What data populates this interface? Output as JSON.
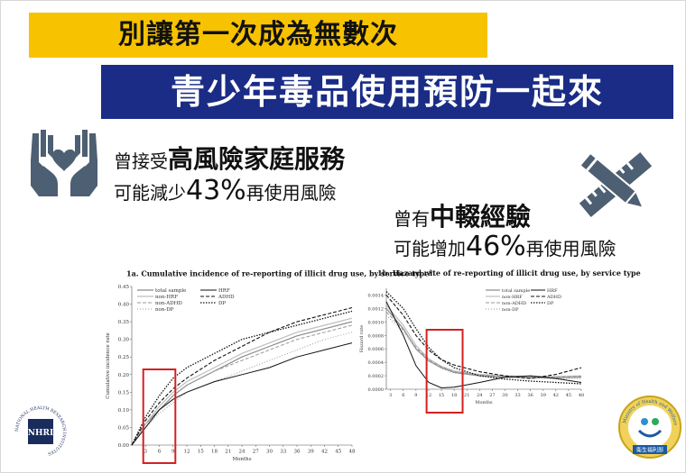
{
  "titles": {
    "line1": "別讓第一次成為無數次",
    "line2": "青少年毒品使用預防一起來"
  },
  "finding1": {
    "prefix": "曾接受",
    "highlight": "高風險家庭服務",
    "line2_prefix": "可能減少",
    "percent": "43%",
    "line2_suffix": "再使用風險"
  },
  "finding2": {
    "prefix": "曾有",
    "highlight": "中輟經驗",
    "line2_prefix": "可能增加",
    "percent": "46%",
    "line2_suffix": "再使用風險"
  },
  "icons": {
    "left": "hands-holding-heart-icon",
    "right": "pencil-ruler-icon"
  },
  "chart_data": [
    {
      "type": "line",
      "title": "1a. Cumulative incidence of re-reporting of illicit drug use, by service type",
      "title_mark": "a",
      "xlabel": "Months",
      "ylabel": "Cumulative incidence rate",
      "x_ticks": [
        3,
        6,
        9,
        12,
        15,
        18,
        21,
        24,
        27,
        30,
        33,
        36,
        39,
        42,
        45,
        48
      ],
      "y_ticks": [
        "0.00",
        "0.05",
        "0.10",
        "0.15",
        "0.20",
        "0.25",
        "0.30",
        "0.35",
        "0.40",
        "0.45"
      ],
      "xlim": [
        0,
        48
      ],
      "ylim": [
        0,
        0.45
      ],
      "highlight_box_x": [
        2.5,
        9.5
      ],
      "legend_placement": "top-left",
      "series": [
        {
          "name": "total sample",
          "style": "solid-gray",
          "x": [
            0,
            3,
            6,
            9,
            12,
            18,
            24,
            30,
            36,
            42,
            48
          ],
          "y": [
            0,
            0.06,
            0.1,
            0.14,
            0.17,
            0.21,
            0.25,
            0.28,
            0.31,
            0.33,
            0.35
          ]
        },
        {
          "name": "non-HRF",
          "style": "solid-lightgray",
          "x": [
            0,
            3,
            6,
            9,
            12,
            18,
            24,
            30,
            36,
            42,
            48
          ],
          "y": [
            0,
            0.06,
            0.11,
            0.15,
            0.18,
            0.22,
            0.26,
            0.29,
            0.32,
            0.34,
            0.36
          ]
        },
        {
          "name": "non-ADHD",
          "style": "dash-gray",
          "x": [
            0,
            3,
            6,
            9,
            12,
            18,
            24,
            30,
            36,
            42,
            48
          ],
          "y": [
            0,
            0.06,
            0.1,
            0.14,
            0.17,
            0.21,
            0.24,
            0.27,
            0.3,
            0.32,
            0.34
          ]
        },
        {
          "name": "non-DP",
          "style": "dot-gray",
          "x": [
            0,
            3,
            6,
            9,
            12,
            18,
            24,
            30,
            36,
            42,
            48
          ],
          "y": [
            0,
            0.05,
            0.09,
            0.12,
            0.15,
            0.18,
            0.21,
            0.24,
            0.27,
            0.3,
            0.32
          ]
        },
        {
          "name": "HRF",
          "style": "solid-black",
          "x": [
            0,
            3,
            6,
            9,
            12,
            18,
            24,
            30,
            36,
            42,
            48
          ],
          "y": [
            0,
            0.05,
            0.1,
            0.13,
            0.15,
            0.18,
            0.2,
            0.22,
            0.25,
            0.27,
            0.29
          ]
        },
        {
          "name": "ADHD",
          "style": "dash-black",
          "x": [
            0,
            3,
            6,
            9,
            12,
            18,
            24,
            30,
            36,
            42,
            48
          ],
          "y": [
            0,
            0.07,
            0.12,
            0.16,
            0.19,
            0.24,
            0.28,
            0.32,
            0.35,
            0.37,
            0.39
          ]
        },
        {
          "name": "DP",
          "style": "dot-black",
          "x": [
            0,
            3,
            6,
            9,
            12,
            18,
            24,
            30,
            36,
            42,
            48
          ],
          "y": [
            0,
            0.08,
            0.14,
            0.19,
            0.22,
            0.26,
            0.3,
            0.32,
            0.34,
            0.36,
            0.38
          ]
        }
      ]
    },
    {
      "type": "line",
      "title": "1b. Hazard rate of re-reporting of illicit drug use, by service type",
      "xlabel": "Months",
      "ylabel": "Hazard rate",
      "x_ticks": [
        3,
        6,
        9,
        12,
        15,
        18,
        21,
        24,
        27,
        30,
        33,
        36,
        39,
        42,
        45,
        48
      ],
      "y_ticks": [
        "0.0000",
        "0.0002",
        "0.0004",
        "0.0006",
        "0.0008",
        "0.0010",
        "0.0012",
        "0.0014"
      ],
      "xlim": [
        2,
        48
      ],
      "ylim": [
        0,
        0.0015
      ],
      "highlight_box_x": [
        11.5,
        20
      ],
      "legend_placement": "top-right",
      "series": [
        {
          "name": "total sample",
          "style": "solid-gray",
          "x": [
            2,
            6,
            9,
            12,
            15,
            18,
            24,
            30,
            36,
            42,
            48
          ],
          "y": [
            0.0012,
            0.0009,
            0.0006,
            0.00042,
            0.00032,
            0.00025,
            0.0002,
            0.00018,
            0.00017,
            0.00017,
            0.00018
          ]
        },
        {
          "name": "non-HRF",
          "style": "solid-lightgray",
          "x": [
            2,
            6,
            9,
            12,
            15,
            18,
            24,
            30,
            36,
            42,
            48
          ],
          "y": [
            0.00125,
            0.00095,
            0.00065,
            0.00045,
            0.00034,
            0.00027,
            0.00022,
            0.0002,
            0.00019,
            0.00019,
            0.0002
          ]
        },
        {
          "name": "non-ADHD",
          "style": "dash-gray",
          "x": [
            2,
            6,
            9,
            12,
            15,
            18,
            24,
            30,
            36,
            42,
            48
          ],
          "y": [
            0.00115,
            0.00088,
            0.00062,
            0.00044,
            0.00033,
            0.00026,
            0.00021,
            0.00019,
            0.00018,
            0.00018,
            0.00019
          ]
        },
        {
          "name": "non-DP",
          "style": "dot-gray",
          "x": [
            2,
            6,
            9,
            12,
            15,
            18,
            24,
            30,
            36,
            42,
            48
          ],
          "y": [
            0.0011,
            0.00085,
            0.0006,
            0.00042,
            0.00031,
            0.00024,
            0.0002,
            0.00018,
            0.00017,
            0.00016,
            0.00016
          ]
        },
        {
          "name": "HRF",
          "style": "solid-black",
          "x": [
            2,
            6,
            9,
            12,
            15,
            18,
            24,
            30,
            36,
            42,
            48
          ],
          "y": [
            0.0013,
            0.0008,
            0.00035,
            0.0001,
            2e-05,
            3e-05,
            0.0001,
            0.00018,
            0.0002,
            0.00016,
            0.0001
          ]
        },
        {
          "name": "ADHD",
          "style": "dash-black",
          "x": [
            2,
            6,
            9,
            12,
            15,
            18,
            24,
            30,
            36,
            42,
            48
          ],
          "y": [
            0.0014,
            0.0011,
            0.0008,
            0.00058,
            0.00044,
            0.00036,
            0.00026,
            0.0002,
            0.00016,
            0.00022,
            0.00032
          ]
        },
        {
          "name": "DP",
          "style": "dot-black",
          "x": [
            2,
            6,
            9,
            12,
            15,
            18,
            24,
            30,
            36,
            42,
            48
          ],
          "y": [
            0.00145,
            0.0012,
            0.0009,
            0.00062,
            0.00044,
            0.00032,
            0.0002,
            0.00015,
            0.00012,
            0.0001,
            8e-05
          ]
        }
      ]
    }
  ],
  "logos": {
    "left": {
      "monogram": "NHRI",
      "ring_text": "NATIONAL HEALTH RESEARCH INSTITUTES"
    },
    "right": {
      "ring_text": "Ministry of Health and Welfare",
      "banner": "衛生福利部"
    }
  },
  "colors": {
    "title_yellow": "#f7c200",
    "title_navy": "#1a2c86",
    "icon_slate": "#4d5f72",
    "highlight_red": "#d42020"
  }
}
